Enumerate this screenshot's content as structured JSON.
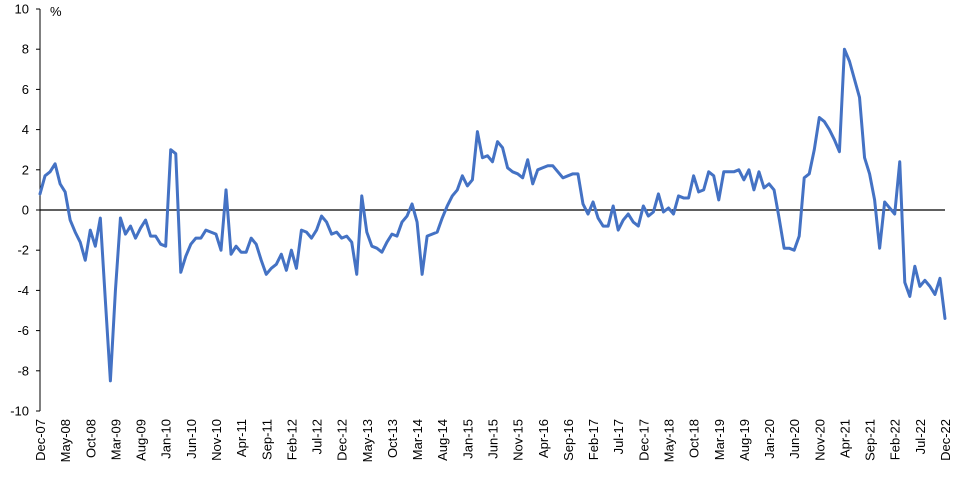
{
  "chart_data": {
    "type": "line",
    "unit_label": "%",
    "xlabel": "",
    "ylabel": "",
    "ylim": [
      -10,
      10
    ],
    "yticks": [
      10,
      8,
      6,
      4,
      2,
      0,
      -2,
      -4,
      -6,
      -8,
      -10
    ],
    "x_tick_labels": [
      "Dec-07",
      "May-08",
      "Oct-08",
      "Mar-09",
      "Aug-09",
      "Jan-10",
      "Jun-10",
      "Nov-10",
      "Apr-11",
      "Sep-11",
      "Feb-12",
      "Jul-12",
      "Dec-12",
      "May-13",
      "Oct-13",
      "Mar-14",
      "Aug-14",
      "Jan-15",
      "Jun-15",
      "Nov-15",
      "Apr-16",
      "Sep-16",
      "Feb-17",
      "Jul-17",
      "Dec-17",
      "May-18",
      "Oct-18",
      "Mar-19",
      "Aug-19",
      "Jan-20",
      "Jun-20",
      "Nov-20",
      "Apr-21",
      "Sep-21",
      "Feb-22",
      "Jul-22",
      "Dec-22"
    ],
    "series": [
      {
        "color": "#4472C4",
        "values": [
          0.8,
          1.7,
          1.9,
          2.3,
          1.3,
          0.9,
          -0.5,
          -1.1,
          -1.6,
          -2.5,
          -1.0,
          -1.8,
          -0.4,
          -4.5,
          -8.5,
          -4.0,
          -0.4,
          -1.2,
          -0.8,
          -1.4,
          -0.9,
          -0.5,
          -1.3,
          -1.3,
          -1.7,
          -1.8,
          3.0,
          2.8,
          -3.1,
          -2.3,
          -1.7,
          -1.4,
          -1.4,
          -1.0,
          -1.1,
          -1.2,
          -2.0,
          1.0,
          -2.2,
          -1.8,
          -2.1,
          -2.1,
          -1.4,
          -1.7,
          -2.5,
          -3.2,
          -2.9,
          -2.7,
          -2.2,
          -3.0,
          -2.0,
          -2.9,
          -1.0,
          -1.1,
          -1.4,
          -1.0,
          -0.3,
          -0.6,
          -1.2,
          -1.1,
          -1.4,
          -1.3,
          -1.6,
          -3.2,
          0.7,
          -1.1,
          -1.8,
          -1.9,
          -2.1,
          -1.6,
          -1.2,
          -1.3,
          -0.6,
          -0.3,
          0.3,
          -0.6,
          -3.2,
          -1.3,
          -1.2,
          -1.1,
          -0.4,
          0.2,
          0.7,
          1.0,
          1.7,
          1.2,
          1.5,
          3.9,
          2.6,
          2.7,
          2.4,
          3.4,
          3.1,
          2.1,
          1.9,
          1.8,
          1.6,
          2.5,
          1.3,
          2.0,
          2.1,
          2.2,
          2.2,
          1.9,
          1.6,
          1.7,
          1.8,
          1.8,
          0.3,
          -0.2,
          0.4,
          -0.4,
          -0.8,
          -0.8,
          0.2,
          -1.0,
          -0.5,
          -0.2,
          -0.6,
          -0.8,
          0.2,
          -0.3,
          -0.1,
          0.8,
          -0.1,
          0.1,
          -0.2,
          0.7,
          0.6,
          0.6,
          1.7,
          0.9,
          1.0,
          1.9,
          1.7,
          0.5,
          1.9,
          1.9,
          1.9,
          2.0,
          1.5,
          2.0,
          1.0,
          1.9,
          1.1,
          1.3,
          1.0,
          -0.4,
          -1.9,
          -1.9,
          -2.0,
          -1.3,
          1.6,
          1.8,
          3.0,
          4.6,
          4.4,
          4.0,
          3.5,
          2.9,
          8.0,
          7.4,
          6.5,
          5.6,
          2.6,
          1.8,
          0.5,
          -1.9,
          0.4,
          0.1,
          -0.2,
          2.4,
          -3.6,
          -4.3,
          -2.8,
          -3.8,
          -3.5,
          -3.8,
          -4.2,
          -3.4,
          -5.4
        ]
      }
    ],
    "grid": false,
    "legend": "none"
  }
}
